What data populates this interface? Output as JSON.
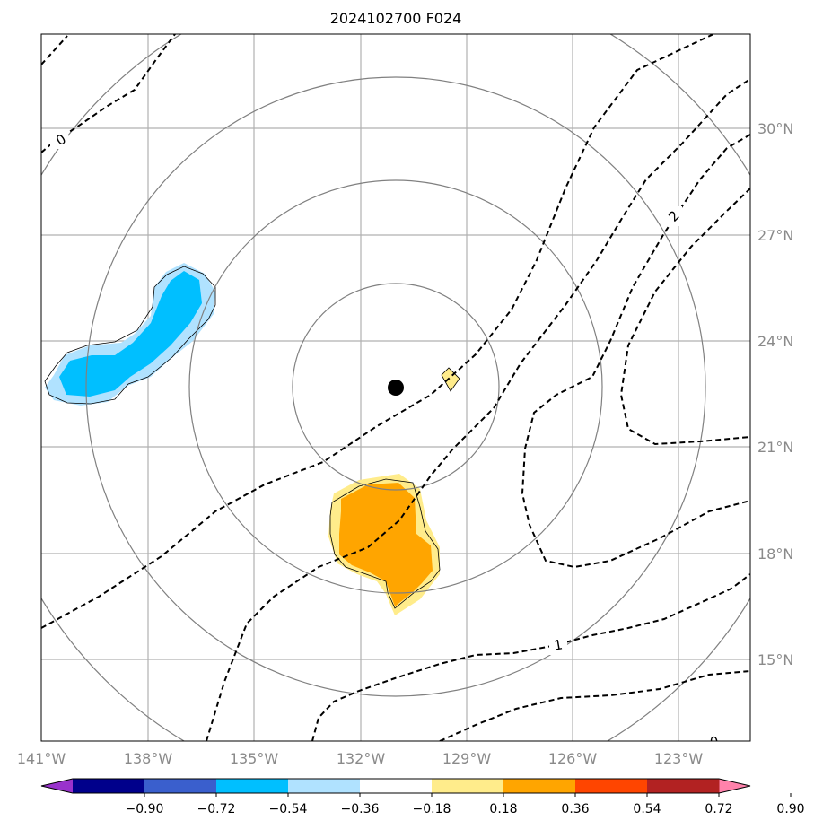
{
  "title": "2024102700 F024",
  "lon_ticks": [
    "141°W",
    "138°W",
    "135°W",
    "132°W",
    "129°W",
    "126°W",
    "123°W"
  ],
  "lat_ticks": [
    "30°N",
    "27°N",
    "24°N",
    "21°N",
    "18°N",
    "15°N"
  ],
  "colorbar": {
    "colors": [
      "#9932cc",
      "#00008b",
      "#3a5fcd",
      "#00bfff",
      "#b0e2ff",
      "#ffffff",
      "#ffec8b",
      "#ffa500",
      "#ff4500",
      "#b22222",
      "#ff82ab"
    ],
    "labels": [
      "−0.90",
      "−0.72",
      "−0.54",
      "−0.36",
      "−0.18",
      "0.18",
      "0.36",
      "0.54",
      "0.72",
      "0.90"
    ]
  },
  "contour_labels": [
    "0",
    "2",
    "1",
    "0"
  ],
  "colors": {
    "grid": "#b0b0b0",
    "range_ring": "#808080",
    "negative_fill": "#00bfff",
    "negative_fill_light": "#b0e2ff",
    "positive_fill": "#ffa500",
    "positive_fill_light": "#ffec8b",
    "center_marker": "#000000"
  }
}
